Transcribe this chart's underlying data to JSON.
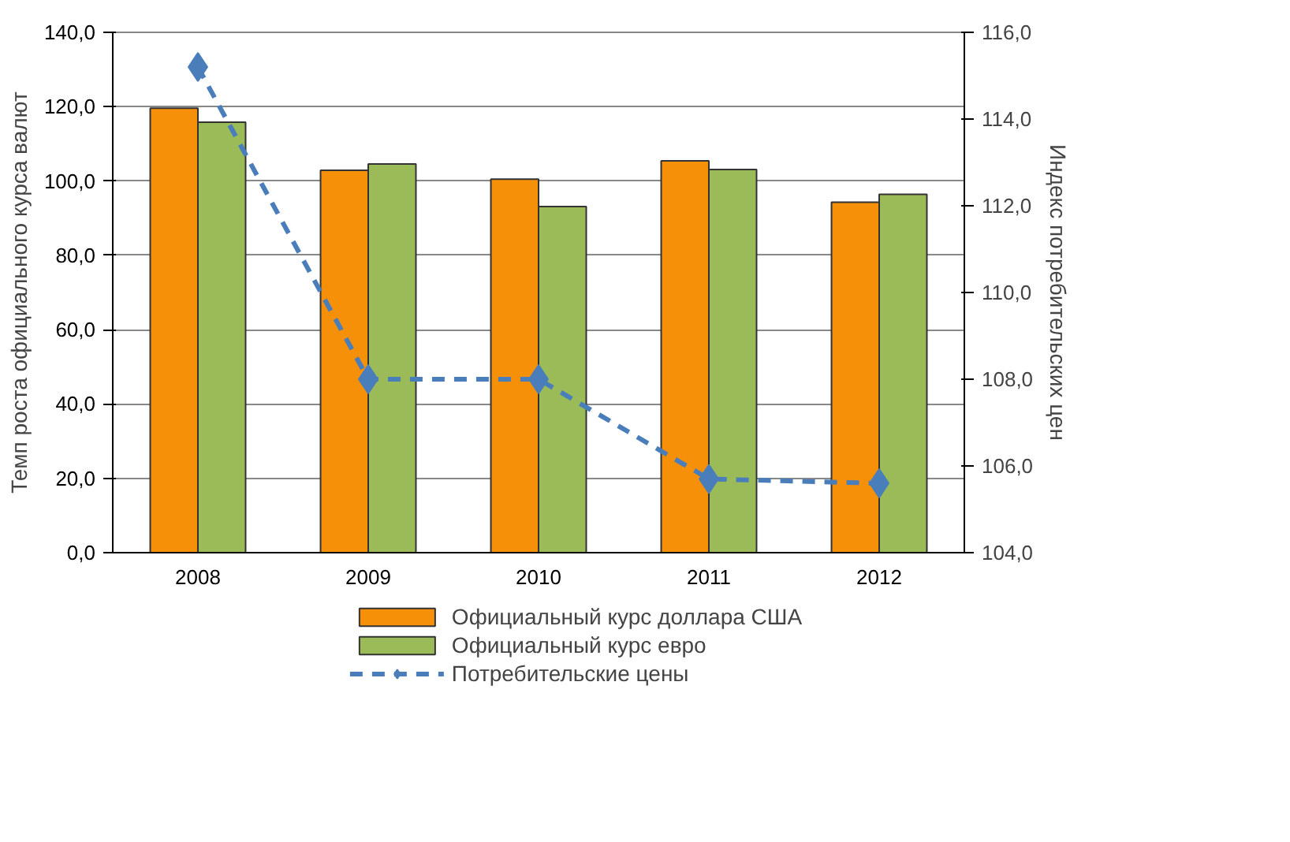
{
  "chart_data": {
    "type": "bar",
    "categories": [
      "2008",
      "2009",
      "2010",
      "2011",
      "2012"
    ],
    "ylabel": "Темп роста официального курса валют",
    "y2label": "Индекс потребительских цен",
    "series": [
      {
        "name": "Официальный курс доллара США",
        "color": "#f79009",
        "values": [
          119.6,
          102.9,
          100.5,
          105.4,
          94.3
        ]
      },
      {
        "name": "Официальный курс евро",
        "color": "#9bbb59",
        "values": [
          115.8,
          104.6,
          93.1,
          103.1,
          96.4
        ]
      },
      {
        "name": "Потребительские цены",
        "type": "line",
        "axis": "y2",
        "color": "#4a7ebb",
        "marker": "diamond",
        "line_style": "dashed",
        "values": [
          115.2,
          108.0,
          108.0,
          105.7,
          105.6
        ]
      }
    ],
    "ylim": [
      0,
      140
    ],
    "yticks": [
      {
        "value": 0,
        "label": "0,0"
      },
      {
        "value": 20,
        "label": "20,0"
      },
      {
        "value": 40,
        "label": "40,0"
      },
      {
        "value": 60,
        "label": "60,0"
      },
      {
        "value": 80,
        "label": "80,0"
      },
      {
        "value": 100,
        "label": "100,0"
      },
      {
        "value": 120,
        "label": "120,0"
      },
      {
        "value": 140,
        "label": "140,0"
      }
    ],
    "y2lim": [
      104,
      116
    ],
    "y2ticks": [
      {
        "value": 104,
        "label": "104,0"
      },
      {
        "value": 106,
        "label": "106,0"
      },
      {
        "value": 108,
        "label": "108,0"
      },
      {
        "value": 110,
        "label": "110,0"
      },
      {
        "value": 112,
        "label": "112,0"
      },
      {
        "value": 114,
        "label": "114,0"
      },
      {
        "value": 116,
        "label": "116,0"
      }
    ],
    "grid": "y",
    "legend": "bottom"
  }
}
